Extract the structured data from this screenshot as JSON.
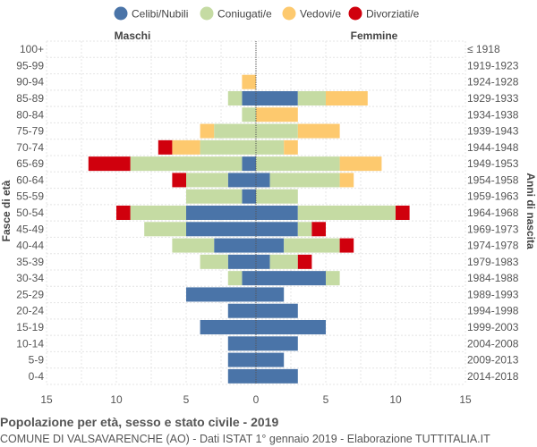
{
  "chart_data": {
    "type": "population-pyramid",
    "title": "Popolazione per età, sesso e stato civile - 2019",
    "subtitle": "COMUNE DI VALSAVARENCHE (AO) - Dati ISTAT 1° gennaio 2019 - Elaborazione TUTTITALIA.IT",
    "left_label": "Maschi",
    "right_label": "Femmine",
    "ylabel_left": "Fasce di età",
    "ylabel_right": "Anni di nascita",
    "xlim": [
      -15,
      15
    ],
    "x_ticks": [
      15,
      10,
      5,
      0,
      5,
      10,
      15
    ],
    "legend": [
      {
        "name": "Celibi/Nubili",
        "color": "#4a74a8"
      },
      {
        "name": "Coniugati/e",
        "color": "#c5dba3"
      },
      {
        "name": "Vedovi/e",
        "color": "#fdc96e"
      },
      {
        "name": "Divorziati/e",
        "color": "#d0000d"
      }
    ],
    "age_groups": [
      "100+",
      "95-99",
      "90-94",
      "85-89",
      "80-84",
      "75-79",
      "70-74",
      "65-69",
      "60-64",
      "55-59",
      "50-54",
      "45-49",
      "40-44",
      "35-39",
      "30-34",
      "25-29",
      "20-24",
      "15-19",
      "10-14",
      "5-9",
      "0-4"
    ],
    "birth_years": [
      "≤ 1918",
      "1919-1923",
      "1924-1928",
      "1929-1933",
      "1934-1938",
      "1939-1943",
      "1944-1948",
      "1949-1953",
      "1954-1958",
      "1959-1963",
      "1964-1968",
      "1969-1973",
      "1974-1978",
      "1979-1983",
      "1984-1988",
      "1989-1993",
      "1994-1998",
      "1999-2003",
      "2004-2008",
      "2009-2013",
      "2014-2018"
    ],
    "males": {
      "celibi": [
        0,
        0,
        0,
        1,
        0,
        0,
        0,
        1,
        2,
        1,
        5,
        5,
        3,
        2,
        1,
        5,
        2,
        4,
        2,
        2,
        2
      ],
      "coniugati": [
        0,
        0,
        0,
        1,
        1,
        3,
        4,
        8,
        3,
        4,
        4,
        3,
        3,
        2,
        1,
        0,
        0,
        0,
        0,
        0,
        0
      ],
      "vedovi": [
        0,
        0,
        1,
        0,
        0,
        1,
        2,
        0,
        0,
        0,
        0,
        0,
        0,
        0,
        0,
        0,
        0,
        0,
        0,
        0,
        0
      ],
      "divorziati": [
        0,
        0,
        0,
        0,
        0,
        0,
        1,
        3,
        1,
        0,
        1,
        0,
        0,
        0,
        0,
        0,
        0,
        0,
        0,
        0,
        0
      ]
    },
    "females": {
      "nubili": [
        0,
        0,
        0,
        3,
        0,
        0,
        0,
        0,
        1,
        0,
        3,
        3,
        2,
        1,
        5,
        2,
        3,
        5,
        3,
        2,
        3
      ],
      "coniugate": [
        0,
        0,
        0,
        2,
        0,
        3,
        2,
        6,
        5,
        3,
        7,
        1,
        4,
        2,
        1,
        0,
        0,
        0,
        0,
        0,
        0
      ],
      "vedove": [
        0,
        0,
        0,
        3,
        3,
        3,
        1,
        3,
        1,
        0,
        0,
        0,
        0,
        0,
        0,
        0,
        0,
        0,
        0,
        0,
        0
      ],
      "divorziate": [
        0,
        0,
        0,
        0,
        0,
        0,
        0,
        0,
        0,
        0,
        1,
        1,
        1,
        1,
        0,
        0,
        0,
        0,
        0,
        0,
        0
      ]
    }
  }
}
